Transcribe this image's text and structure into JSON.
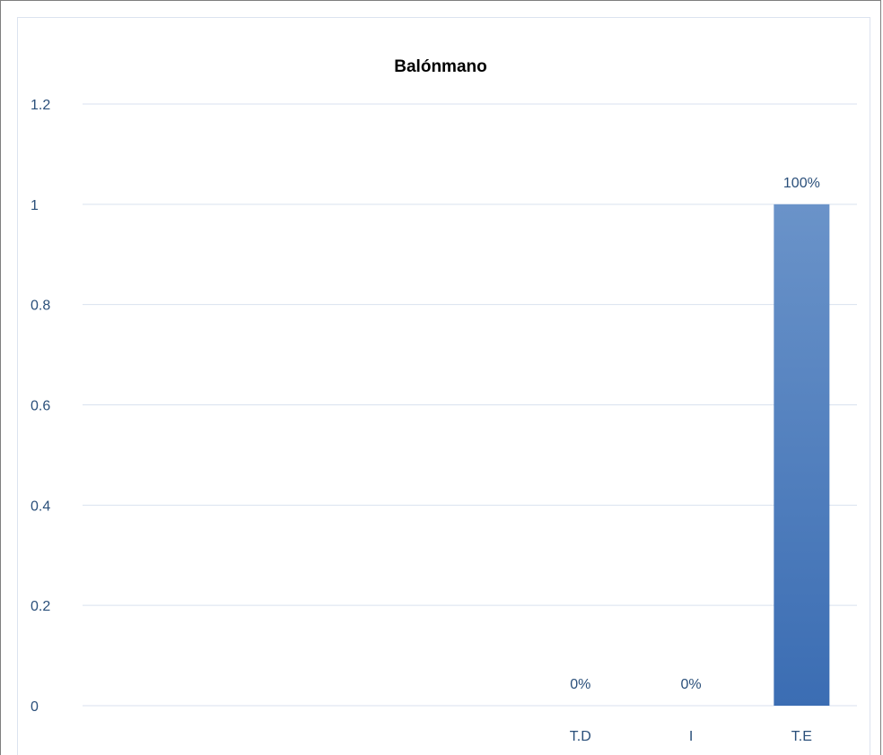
{
  "chart_data": {
    "type": "bar",
    "title": "Balónmano",
    "xlabel": "",
    "ylabel": "",
    "categories": [
      "",
      "",
      "",
      "",
      "T.D",
      "I",
      "T.E"
    ],
    "values": [
      null,
      null,
      null,
      null,
      0,
      0,
      1
    ],
    "data_labels": [
      "",
      "",
      "",
      "",
      "0%",
      "0%",
      "100%"
    ],
    "y_ticks": [
      "0",
      "0.2",
      "0.4",
      "0.6",
      "0.8",
      "1",
      "1.2"
    ],
    "ylim": [
      0,
      1.2
    ],
    "grid": true,
    "legend": "none",
    "colors": {
      "bar_top": "#6a93c9",
      "bar_bottom": "#3b6db3",
      "grid": "#d9e2ef",
      "text": "#2a4f7a"
    }
  }
}
